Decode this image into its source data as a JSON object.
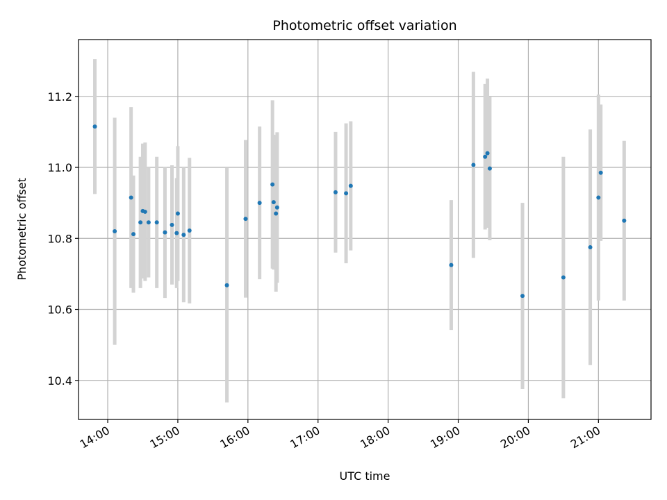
{
  "chart_data": {
    "type": "scatter",
    "title": "Photometric offset variation",
    "xlabel": "UTC time",
    "ylabel": "Photometric offset",
    "x_unit": "UTC time of day (HH:MM)",
    "xlim": [
      "13:35",
      "21:45"
    ],
    "ylim": [
      10.29,
      11.36
    ],
    "x_ticks": [
      "14:00",
      "15:00",
      "16:00",
      "17:00",
      "18:00",
      "19:00",
      "20:00",
      "21:00"
    ],
    "y_ticks": [
      "10.4",
      "10.6",
      "10.8",
      "11.0",
      "11.2"
    ],
    "grid": true,
    "legend": "none",
    "marker_color": "#1f77b4",
    "errorbar_color": "#d3d3d3",
    "points": [
      {
        "x": "13:49",
        "y": 11.115,
        "yerr": 0.19
      },
      {
        "x": "14:06",
        "y": 10.82,
        "yerr": 0.32
      },
      {
        "x": "14:20",
        "y": 10.915,
        "yerr": 0.255
      },
      {
        "x": "14:22",
        "y": 10.812,
        "yerr": 0.165
      },
      {
        "x": "14:28",
        "y": 10.845,
        "yerr": 0.185
      },
      {
        "x": "14:30",
        "y": 10.877,
        "yerr": 0.19
      },
      {
        "x": "14:32",
        "y": 10.875,
        "yerr": 0.195
      },
      {
        "x": "14:35",
        "y": 10.845,
        "yerr": 0.155
      },
      {
        "x": "14:42",
        "y": 10.845,
        "yerr": 0.185
      },
      {
        "x": "14:49",
        "y": 10.817,
        "yerr": 0.185
      },
      {
        "x": "14:55",
        "y": 10.838,
        "yerr": 0.168
      },
      {
        "x": "14:59",
        "y": 10.815,
        "yerr": 0.155
      },
      {
        "x": "15:00",
        "y": 10.87,
        "yerr": 0.19
      },
      {
        "x": "15:05",
        "y": 10.81,
        "yerr": 0.19
      },
      {
        "x": "15:10",
        "y": 10.822,
        "yerr": 0.205
      },
      {
        "x": "15:42",
        "y": 10.668,
        "yerr": 0.33
      },
      {
        "x": "15:58",
        "y": 10.855,
        "yerr": 0.222
      },
      {
        "x": "16:10",
        "y": 10.9,
        "yerr": 0.215
      },
      {
        "x": "16:21",
        "y": 10.952,
        "yerr": 0.237
      },
      {
        "x": "16:22",
        "y": 10.902,
        "yerr": 0.19
      },
      {
        "x": "16:24",
        "y": 10.87,
        "yerr": 0.22
      },
      {
        "x": "16:25",
        "y": 10.887,
        "yerr": 0.212
      },
      {
        "x": "17:15",
        "y": 10.93,
        "yerr": 0.17
      },
      {
        "x": "17:24",
        "y": 10.927,
        "yerr": 0.197
      },
      {
        "x": "17:28",
        "y": 10.948,
        "yerr": 0.182
      },
      {
        "x": "18:54",
        "y": 10.725,
        "yerr": 0.183
      },
      {
        "x": "19:13",
        "y": 11.007,
        "yerr": 0.262
      },
      {
        "x": "19:23",
        "y": 11.03,
        "yerr": 0.205
      },
      {
        "x": "19:25",
        "y": 11.04,
        "yerr": 0.21
      },
      {
        "x": "19:27",
        "y": 10.997,
        "yerr": 0.202
      },
      {
        "x": "19:55",
        "y": 10.638,
        "yerr": 0.262
      },
      {
        "x": "20:30",
        "y": 10.69,
        "yerr": 0.34
      },
      {
        "x": "20:53",
        "y": 10.775,
        "yerr": 0.332
      },
      {
        "x": "21:00",
        "y": 10.915,
        "yerr": 0.29
      },
      {
        "x": "21:02",
        "y": 10.985,
        "yerr": 0.192
      },
      {
        "x": "21:22",
        "y": 10.85,
        "yerr": 0.225
      }
    ]
  }
}
